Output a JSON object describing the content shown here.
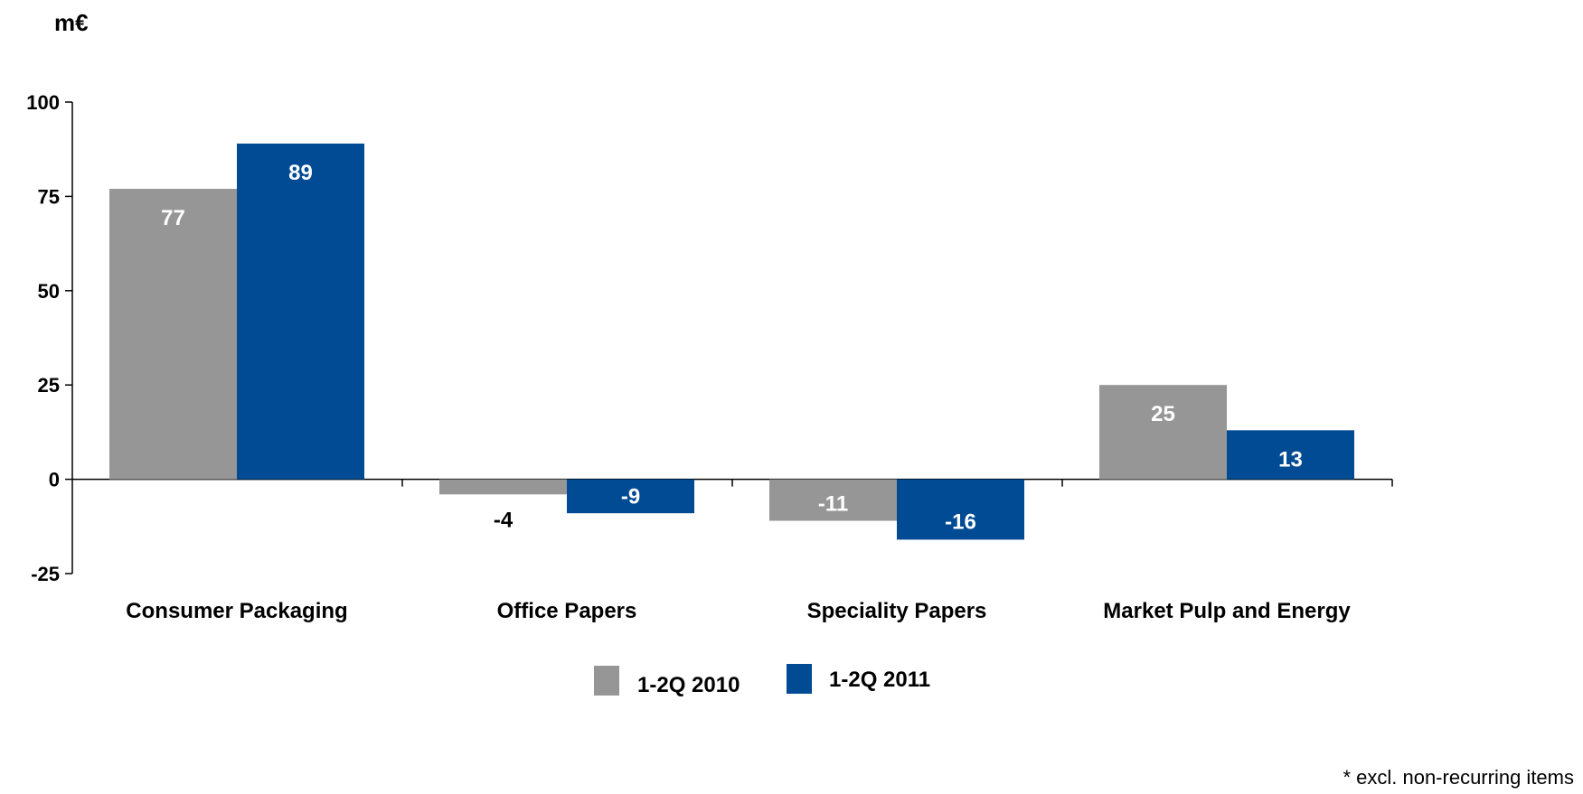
{
  "unit_label": "m€",
  "footnote": "* excl. non-recurring items",
  "colors": {
    "series_2010": "#969696",
    "series_2011": "#004b93",
    "axis": "#000000",
    "label_on_bar": "#ffffff",
    "label_off_bar": "#000000"
  },
  "chart_data": {
    "type": "bar",
    "title": "",
    "xlabel": "",
    "ylabel": "m€",
    "categories": [
      "Consumer Packaging",
      "Office Papers",
      "Speciality Papers",
      "Market Pulp and Energy"
    ],
    "series": [
      {
        "name": "1-2Q 2010",
        "values": [
          77,
          -4,
          -11,
          25
        ]
      },
      {
        "name": "1-2Q 2011",
        "values": [
          89,
          -9,
          -16,
          13
        ]
      }
    ],
    "ylim": [
      -25,
      100
    ],
    "yticks": [
      -25,
      0,
      25,
      50,
      75,
      100
    ],
    "grid": false,
    "legend_position": "bottom"
  }
}
